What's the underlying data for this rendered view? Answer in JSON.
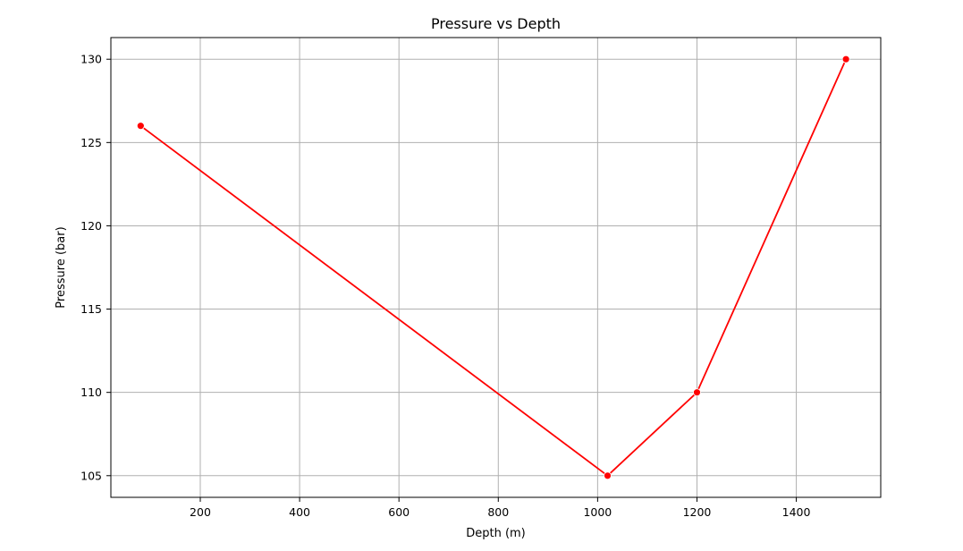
{
  "chart_data": {
    "type": "line",
    "title": "Pressure vs Depth",
    "xlabel": "Depth (m)",
    "ylabel": "Pressure (bar)",
    "xlim": [
      20,
      1570
    ],
    "ylim": [
      103.7,
      131.3
    ],
    "x_ticks": [
      200,
      400,
      600,
      800,
      1000,
      1200,
      1400
    ],
    "y_ticks": [
      105,
      110,
      115,
      120,
      125,
      130
    ],
    "grid": true,
    "series": [
      {
        "color": "#ff0000",
        "marker": "circle",
        "x": [
          80,
          1020,
          1200,
          1500
        ],
        "y": [
          126,
          105,
          110,
          130
        ]
      }
    ]
  }
}
